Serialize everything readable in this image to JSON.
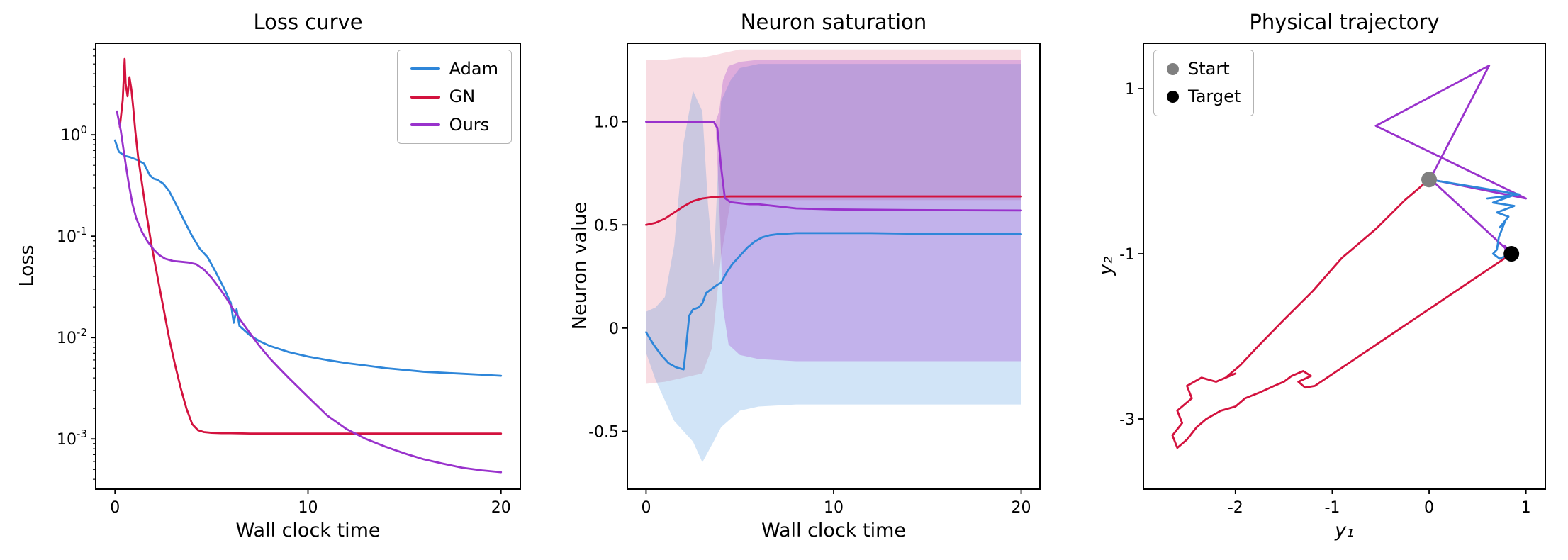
{
  "figure": {
    "background": "#ffffff"
  },
  "chart_data": [
    {
      "type": "line",
      "title": "Loss curve",
      "xlabel": "Wall clock time",
      "ylabel": "Loss",
      "x_range": [
        -1,
        21
      ],
      "y_scale": "log",
      "y_range": [
        0.00032,
        8
      ],
      "grid": false,
      "legend_position": "top-right",
      "xticks": [
        {
          "v": 0,
          "label": "0"
        },
        {
          "v": 10,
          "label": "10"
        },
        {
          "v": 20,
          "label": "20"
        }
      ],
      "yticks": [
        {
          "v": 1,
          "exp": "0"
        },
        {
          "v": 0.1,
          "exp": "-1"
        },
        {
          "v": 0.01,
          "exp": "-2"
        },
        {
          "v": 0.001,
          "exp": "-3"
        }
      ],
      "series": [
        {
          "name": "Adam",
          "color": "#2e86d9",
          "x": [
            0,
            0.2,
            0.5,
            0.8,
            1.0,
            1.2,
            1.5,
            1.8,
            2.0,
            2.2,
            2.5,
            2.8,
            3.2,
            3.6,
            4.0,
            4.4,
            4.8,
            5.2,
            5.6,
            6.0,
            6.15,
            6.3,
            6.45,
            7,
            7.5,
            8,
            9,
            10,
            11,
            12,
            13,
            14,
            15,
            16,
            17,
            18,
            19,
            20
          ],
          "y": [
            0.88,
            0.68,
            0.62,
            0.6,
            0.58,
            0.56,
            0.52,
            0.4,
            0.37,
            0.36,
            0.33,
            0.28,
            0.2,
            0.14,
            0.1,
            0.075,
            0.062,
            0.045,
            0.032,
            0.022,
            0.014,
            0.019,
            0.013,
            0.0105,
            0.0092,
            0.0083,
            0.0072,
            0.0065,
            0.006,
            0.0056,
            0.0053,
            0.005,
            0.0048,
            0.0046,
            0.0045,
            0.0044,
            0.0043,
            0.0042
          ]
        },
        {
          "name": "GN",
          "color": "#d3123e",
          "x": [
            0.25,
            0.4,
            0.5,
            0.55,
            0.65,
            0.75,
            0.85,
            0.95,
            1.05,
            1.2,
            1.4,
            1.6,
            1.9,
            2.2,
            2.5,
            2.8,
            3.1,
            3.4,
            3.7,
            4.0,
            4.3,
            4.6,
            5.0,
            5.5,
            6,
            7,
            8,
            10,
            12,
            14,
            16,
            18,
            20
          ],
          "y": [
            1.2,
            2.2,
            5.6,
            3.2,
            2.4,
            3.7,
            2.8,
            1.8,
            1.1,
            0.6,
            0.33,
            0.18,
            0.08,
            0.04,
            0.02,
            0.01,
            0.0055,
            0.0032,
            0.002,
            0.0014,
            0.00122,
            0.00117,
            0.00115,
            0.00114,
            0.00114,
            0.00113,
            0.00113,
            0.00113,
            0.00113,
            0.00113,
            0.00113,
            0.00113,
            0.00113
          ]
        },
        {
          "name": "Ours",
          "color": "#9932cc",
          "x": [
            0.1,
            0.3,
            0.5,
            0.7,
            0.9,
            1.1,
            1.4,
            1.7,
            2.0,
            2.3,
            2.6,
            3.0,
            3.4,
            3.8,
            4.2,
            4.6,
            5.0,
            5.4,
            5.8,
            6.2,
            6.6,
            7.0,
            7.5,
            8.0,
            8.5,
            9.0,
            10,
            11,
            12,
            13,
            14,
            15,
            16,
            17,
            18,
            19,
            20
          ],
          "y": [
            1.7,
            1.1,
            0.6,
            0.34,
            0.21,
            0.15,
            0.11,
            0.088,
            0.074,
            0.065,
            0.06,
            0.057,
            0.056,
            0.055,
            0.053,
            0.047,
            0.039,
            0.031,
            0.024,
            0.018,
            0.014,
            0.011,
            0.0082,
            0.0063,
            0.005,
            0.004,
            0.0026,
            0.0017,
            0.00125,
            0.001,
            0.00084,
            0.00072,
            0.00063,
            0.00057,
            0.00052,
            0.00049,
            0.00047
          ]
        }
      ]
    },
    {
      "type": "line",
      "title": "Neuron saturation",
      "xlabel": "Wall clock time",
      "ylabel": "Neuron value",
      "x_range": [
        -1,
        21
      ],
      "y_range": [
        -0.78,
        1.38
      ],
      "grid": false,
      "xticks": [
        {
          "v": 0,
          "label": "0"
        },
        {
          "v": 10,
          "label": "10"
        },
        {
          "v": 20,
          "label": "20"
        }
      ],
      "yticks": [
        {
          "v": -0.5,
          "label": "-0.5"
        },
        {
          "v": 0,
          "label": "0"
        },
        {
          "v": 0.5,
          "label": "0.5"
        },
        {
          "v": 1.0,
          "label": "1.0"
        }
      ],
      "bands": [
        {
          "name": "GN",
          "color": "#d3123e",
          "alpha": 0.15,
          "x": [
            0,
            1,
            2,
            3,
            3.5,
            4,
            4.5,
            5,
            20
          ],
          "lower": [
            -0.27,
            -0.26,
            -0.24,
            -0.22,
            -0.1,
            0.35,
            0.61,
            0.62,
            0.62
          ],
          "upper": [
            1.3,
            1.3,
            1.31,
            1.31,
            1.32,
            1.33,
            1.34,
            1.35,
            1.35
          ]
        },
        {
          "name": "Adam",
          "color": "#2e86d9",
          "alpha": 0.22,
          "x": [
            0,
            0.5,
            1,
            1.5,
            2,
            2.5,
            3,
            3.3,
            3.6,
            4,
            4.5,
            5,
            6,
            8,
            20
          ],
          "lower": [
            -0.12,
            -0.25,
            -0.35,
            -0.45,
            -0.5,
            -0.55,
            -0.65,
            -0.6,
            -0.55,
            -0.48,
            -0.44,
            -0.4,
            -0.38,
            -0.37,
            -0.37
          ],
          "upper": [
            0.08,
            0.1,
            0.15,
            0.4,
            0.9,
            1.15,
            1.05,
            0.6,
            0.3,
            1.1,
            1.2,
            1.26,
            1.28,
            1.28,
            1.28
          ]
        },
        {
          "name": "Ours",
          "color": "#9932cc",
          "alpha": 0.28,
          "x": [
            0,
            3.7,
            3.9,
            4.1,
            4.4,
            5,
            6,
            8,
            20
          ],
          "lower": [
            1.0,
            1.0,
            0.6,
            0.1,
            -0.08,
            -0.13,
            -0.15,
            -0.16,
            -0.16
          ],
          "upper": [
            1.0,
            1.0,
            1.05,
            1.2,
            1.27,
            1.29,
            1.3,
            1.3,
            1.3
          ]
        }
      ],
      "series": [
        {
          "name": "Adam",
          "color": "#2e86d9",
          "x": [
            0,
            0.4,
            0.8,
            1.2,
            1.6,
            2.0,
            2.1,
            2.3,
            2.5,
            2.8,
            3.0,
            3.2,
            3.5,
            3.8,
            4.0,
            4.3,
            4.6,
            5.0,
            5.4,
            5.8,
            6.2,
            6.6,
            7.0,
            8,
            10,
            12,
            16,
            20
          ],
          "y": [
            -0.02,
            -0.08,
            -0.13,
            -0.17,
            -0.19,
            -0.2,
            -0.12,
            0.06,
            0.09,
            0.1,
            0.12,
            0.17,
            0.19,
            0.21,
            0.22,
            0.27,
            0.31,
            0.35,
            0.39,
            0.42,
            0.44,
            0.45,
            0.455,
            0.46,
            0.46,
            0.46,
            0.455,
            0.455
          ]
        },
        {
          "name": "GN",
          "color": "#d3123e",
          "x": [
            0,
            0.5,
            1.0,
            1.5,
            2.0,
            2.5,
            3.0,
            3.5,
            4.0,
            4.5,
            5,
            6,
            8,
            10,
            14,
            20
          ],
          "y": [
            0.5,
            0.51,
            0.53,
            0.56,
            0.59,
            0.615,
            0.628,
            0.634,
            0.637,
            0.638,
            0.638,
            0.638,
            0.638,
            0.638,
            0.638,
            0.638
          ]
        },
        {
          "name": "Ours",
          "color": "#9932cc",
          "x": [
            0,
            1,
            2,
            3,
            3.6,
            3.8,
            4.0,
            4.2,
            4.5,
            5,
            5.5,
            6,
            7,
            8,
            10,
            14,
            20
          ],
          "y": [
            1.0,
            1.0,
            1.0,
            1.0,
            1.0,
            0.97,
            0.78,
            0.63,
            0.61,
            0.605,
            0.6,
            0.6,
            0.59,
            0.58,
            0.575,
            0.572,
            0.57
          ]
        }
      ]
    },
    {
      "type": "line",
      "title": "Physical trajectory",
      "xlabel": "y₁",
      "ylabel": "y₂",
      "x_range": [
        -2.95,
        1.2
      ],
      "y_range": [
        -3.85,
        1.55
      ],
      "grid": false,
      "legend_position": "top-left",
      "xticks": [
        {
          "v": -2,
          "label": "-2"
        },
        {
          "v": -1,
          "label": "-1"
        },
        {
          "v": 0,
          "label": "0"
        },
        {
          "v": 1,
          "label": "1"
        }
      ],
      "yticks": [
        {
          "v": 1,
          "label": "1"
        },
        {
          "v": -1,
          "label": "-1"
        },
        {
          "v": -3,
          "label": "-3"
        }
      ],
      "points": [
        {
          "label": "Start",
          "x": 0,
          "y": -0.1,
          "color": "#7f7f7f",
          "size": 11
        },
        {
          "label": "Target",
          "x": 0.85,
          "y": -1.0,
          "color": "#000000",
          "size": 11
        }
      ],
      "series": [
        {
          "name": "GN",
          "color": "#d3123e",
          "x": [
            0,
            -0.25,
            -0.55,
            -0.9,
            -1.2,
            -1.5,
            -1.75,
            -1.95,
            -2.1,
            -2.0,
            -2.2,
            -2.35,
            -2.5,
            -2.45,
            -2.6,
            -2.55,
            -2.65,
            -2.6,
            -2.5,
            -2.4,
            -2.3,
            -2.15,
            -2.0,
            -1.9,
            -1.75,
            -1.6,
            -1.5,
            -1.42,
            -1.3,
            -1.22,
            -1.35,
            -1.28,
            -1.18,
            0.85
          ],
          "y": [
            -0.1,
            -0.35,
            -0.7,
            -1.05,
            -1.45,
            -1.8,
            -2.1,
            -2.35,
            -2.5,
            -2.45,
            -2.55,
            -2.5,
            -2.6,
            -2.75,
            -2.9,
            -3.05,
            -3.2,
            -3.35,
            -3.25,
            -3.1,
            -3.0,
            -2.9,
            -2.85,
            -2.75,
            -2.68,
            -2.6,
            -2.55,
            -2.48,
            -2.42,
            -2.48,
            -2.55,
            -2.62,
            -2.6,
            -1.0
          ]
        },
        {
          "name": "Ours",
          "color": "#9932cc",
          "x": [
            0,
            0.62,
            -0.55,
            1.0,
            0.02,
            0.85,
            0.78,
            0.8,
            0.83
          ],
          "y": [
            -0.12,
            1.28,
            0.55,
            -0.33,
            -0.1,
            -1.0,
            -0.9,
            -1.02,
            -1.0
          ]
        },
        {
          "name": "Adam",
          "color": "#2e86d9",
          "x": [
            0,
            0.93,
            0.6,
            0.85,
            0.66,
            0.88,
            0.7,
            0.82,
            0.73,
            0.78,
            0.72,
            0.7,
            0.66,
            0.73,
            0.8,
            0.86,
            0.85
          ],
          "y": [
            -0.1,
            -0.28,
            -0.33,
            -0.3,
            -0.38,
            -0.42,
            -0.5,
            -0.55,
            -0.68,
            -0.62,
            -0.8,
            -0.95,
            -1.0,
            -1.06,
            -1.02,
            -0.98,
            -1.0
          ]
        }
      ]
    }
  ]
}
